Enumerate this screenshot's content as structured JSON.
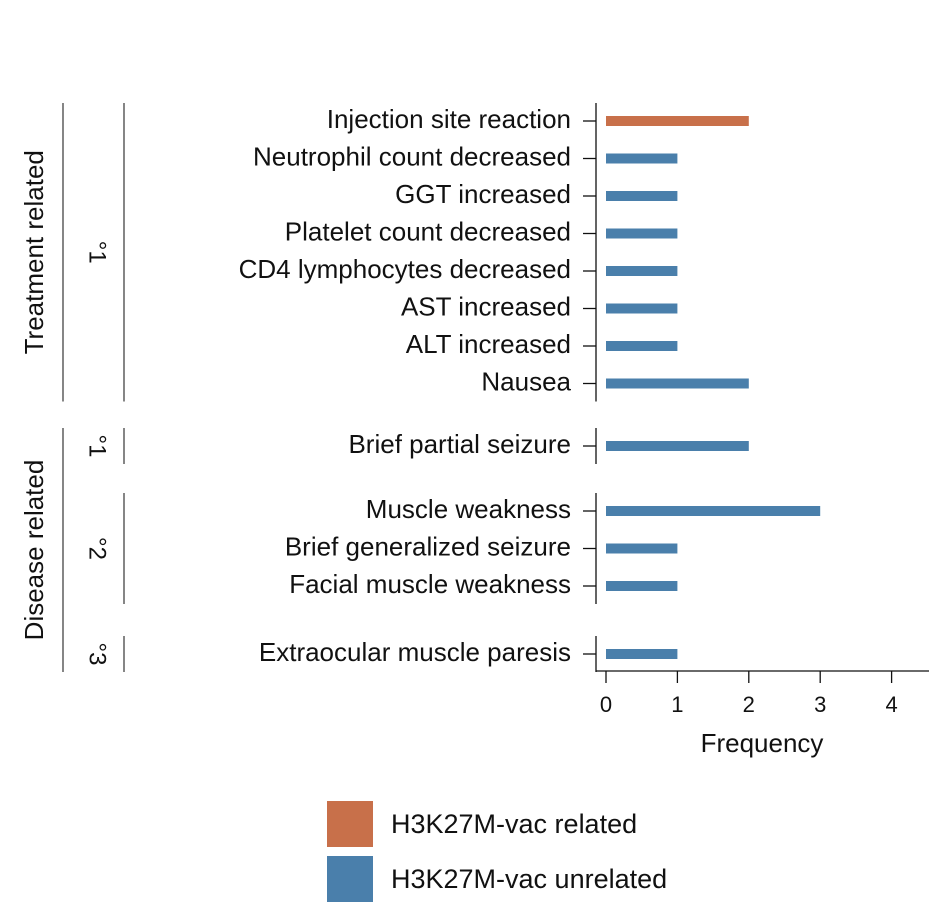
{
  "chart_data": {
    "type": "bar",
    "orientation": "horizontal",
    "xlabel": "Frequency",
    "xlim": [
      0,
      4
    ],
    "xticks": [
      0,
      1,
      2,
      3,
      4
    ],
    "colors": {
      "related": "#c8704a",
      "unrelated": "#4a7fab"
    },
    "groups": [
      {
        "label": "Treatment related",
        "subgroups": [
          {
            "grade": "°1",
            "items": [
              {
                "label": "Injection site reaction",
                "value": 2,
                "series": "related"
              },
              {
                "label": "Neutrophil count decreased",
                "value": 1,
                "series": "unrelated"
              },
              {
                "label": "GGT increased",
                "value": 1,
                "series": "unrelated"
              },
              {
                "label": "Platelet count decreased",
                "value": 1,
                "series": "unrelated"
              },
              {
                "label": "CD4 lymphocytes decreased",
                "value": 1,
                "series": "unrelated"
              },
              {
                "label": "AST increased",
                "value": 1,
                "series": "unrelated"
              },
              {
                "label": "ALT increased",
                "value": 1,
                "series": "unrelated"
              },
              {
                "label": "Nausea",
                "value": 2,
                "series": "unrelated"
              }
            ]
          }
        ]
      },
      {
        "label": "Disease related",
        "subgroups": [
          {
            "grade": "°1",
            "items": [
              {
                "label": "Brief partial seizure",
                "value": 2,
                "series": "unrelated"
              }
            ]
          },
          {
            "grade": "°2",
            "items": [
              {
                "label": "Muscle weakness",
                "value": 3,
                "series": "unrelated"
              },
              {
                "label": "Brief generalized seizure",
                "value": 1,
                "series": "unrelated"
              },
              {
                "label": "Facial muscle weakness",
                "value": 1,
                "series": "unrelated"
              }
            ]
          },
          {
            "grade": "°3",
            "items": [
              {
                "label": "Extraocular muscle paresis",
                "value": 1,
                "series": "unrelated"
              }
            ]
          }
        ]
      }
    ],
    "legend": [
      {
        "label": "H3K27M-vac related",
        "series": "related"
      },
      {
        "label": "H3K27M-vac unrelated",
        "series": "unrelated"
      }
    ]
  }
}
